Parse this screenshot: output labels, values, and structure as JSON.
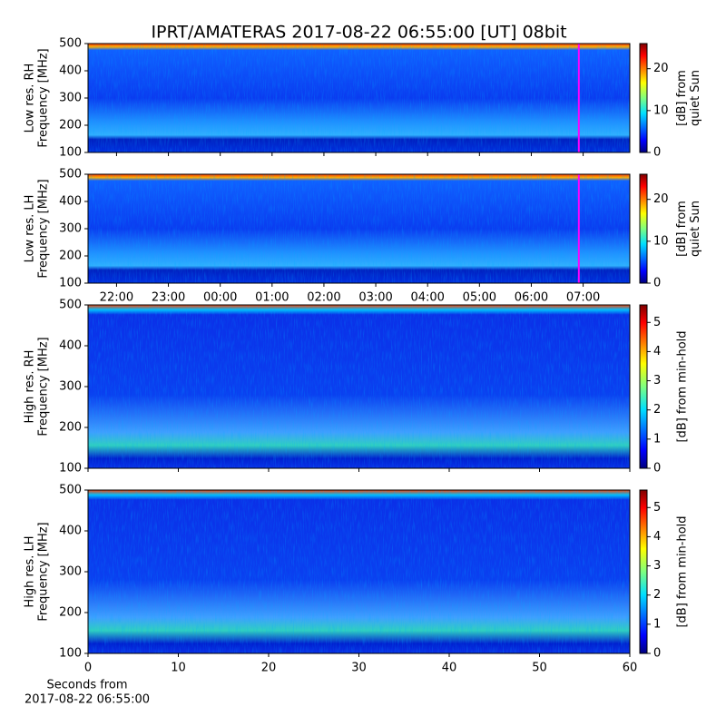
{
  "chart_data": [
    {
      "type": "heatmap",
      "title": "IPRT/AMATERAS 2017-08-22 06:55:00 [UT]   08bit",
      "ylabel": [
        "Low res. RH",
        "Frequency [MHz]"
      ],
      "ylim": [
        100,
        500
      ],
      "yticks": [
        100,
        200,
        300,
        400,
        500
      ],
      "xlim": [
        "21:27",
        "07:54"
      ],
      "xticks": [
        "22:00",
        "23:00",
        "00:00",
        "01:00",
        "02:00",
        "03:00",
        "04:00",
        "05:00",
        "06:00",
        "07:00"
      ],
      "show_xticklabels": false,
      "marker_x": "06:55",
      "marker_color": "#ff00ff",
      "clabel": [
        "[dB] from",
        "quiet Sun"
      ],
      "clim": [
        0,
        26
      ],
      "cticks": [
        0,
        10,
        20
      ]
    },
    {
      "type": "heatmap",
      "ylabel": [
        "Low res. LH",
        "Frequency [MHz]"
      ],
      "ylim": [
        100,
        500
      ],
      "yticks": [
        100,
        200,
        300,
        400,
        500
      ],
      "xlim": [
        "21:27",
        "07:54"
      ],
      "xticks": [
        "22:00",
        "23:00",
        "00:00",
        "01:00",
        "02:00",
        "03:00",
        "04:00",
        "05:00",
        "06:00",
        "07:00"
      ],
      "show_xticklabels": true,
      "marker_x": "06:55",
      "marker_color": "#ff00ff",
      "clabel": [
        "[dB] from",
        "quiet Sun"
      ],
      "clim": [
        0,
        26
      ],
      "cticks": [
        0,
        10,
        20
      ]
    },
    {
      "type": "heatmap",
      "ylabel": [
        "High res. RH",
        "Frequency [MHz]"
      ],
      "ylim": [
        100,
        500
      ],
      "yticks": [
        100,
        200,
        300,
        400,
        500
      ],
      "xlim": [
        0,
        60
      ],
      "xticks": [
        0,
        10,
        20,
        30,
        40,
        50,
        60
      ],
      "show_xticklabels": false,
      "clabel": [
        "[dB] from min-hold"
      ],
      "clim": [
        0,
        5.6
      ],
      "cticks": [
        0,
        1,
        2,
        3,
        4,
        5
      ]
    },
    {
      "type": "heatmap",
      "ylabel": [
        "High res. LH",
        "Frequency [MHz]"
      ],
      "ylim": [
        100,
        500
      ],
      "yticks": [
        100,
        200,
        300,
        400,
        500
      ],
      "xlim": [
        0,
        60
      ],
      "xticks": [
        0,
        10,
        20,
        30,
        40,
        50,
        60
      ],
      "show_xticklabels": true,
      "xlabel": [
        "Seconds from",
        "2017-08-22 06:55:00"
      ],
      "clabel": [
        "[dB] from min-hold"
      ],
      "clim": [
        0,
        5.6
      ],
      "cticks": [
        0,
        1,
        2,
        3,
        4,
        5
      ]
    }
  ]
}
